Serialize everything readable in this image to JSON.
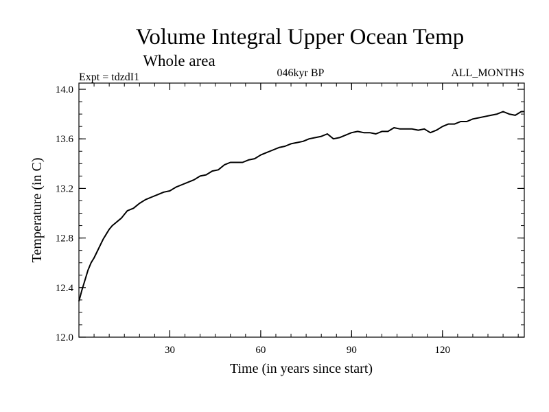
{
  "chart_data": {
    "type": "line",
    "title": "Volume Integral Upper Ocean Temp",
    "subtitle": "Whole area",
    "annotations": {
      "left": "Expt = tdzdI1",
      "center": "046kyr BP",
      "right": "ALL_MONTHS"
    },
    "xlabel": "Time (in years since start)",
    "ylabel": "Temperature (in C)",
    "xlim": [
      0,
      147
    ],
    "ylim": [
      12.0,
      14.05
    ],
    "x_ticks": [
      30,
      60,
      90,
      120
    ],
    "x_tick_labels": [
      "30",
      "60",
      "90",
      "120"
    ],
    "y_ticks": [
      12.0,
      12.4,
      12.8,
      13.2,
      13.6,
      14.0
    ],
    "y_tick_labels": [
      "12.0",
      "12.4",
      "12.8",
      "13.2",
      "13.6",
      "14.0"
    ],
    "x_minor_step": 5,
    "y_minor_step": 0.1,
    "series": [
      {
        "name": "Temperature",
        "color": "#000000",
        "x": [
          0,
          1,
          2,
          3,
          4,
          5,
          6,
          7,
          8,
          9,
          10,
          11,
          12,
          13,
          14,
          15,
          16,
          17,
          18,
          19,
          20,
          22,
          24,
          26,
          28,
          30,
          32,
          34,
          36,
          38,
          40,
          42,
          44,
          46,
          48,
          50,
          52,
          54,
          56,
          58,
          60,
          62,
          64,
          66,
          68,
          70,
          72,
          74,
          76,
          78,
          80,
          82,
          84,
          86,
          88,
          90,
          92,
          94,
          96,
          98,
          100,
          102,
          104,
          106,
          108,
          110,
          112,
          114,
          116,
          118,
          120,
          122,
          124,
          126,
          128,
          130,
          132,
          134,
          136,
          138,
          140,
          142,
          144,
          146,
          147
        ],
        "values": [
          12.29,
          12.38,
          12.46,
          12.54,
          12.6,
          12.64,
          12.69,
          12.74,
          12.79,
          12.83,
          12.87,
          12.9,
          12.92,
          12.94,
          12.96,
          12.99,
          13.02,
          13.03,
          13.04,
          13.06,
          13.08,
          13.11,
          13.13,
          13.15,
          13.17,
          13.18,
          13.21,
          13.23,
          13.25,
          13.27,
          13.3,
          13.31,
          13.34,
          13.35,
          13.39,
          13.41,
          13.41,
          13.41,
          13.43,
          13.44,
          13.47,
          13.49,
          13.51,
          13.53,
          13.54,
          13.56,
          13.57,
          13.58,
          13.6,
          13.61,
          13.62,
          13.64,
          13.6,
          13.61,
          13.63,
          13.65,
          13.66,
          13.65,
          13.65,
          13.64,
          13.66,
          13.66,
          13.69,
          13.68,
          13.68,
          13.68,
          13.67,
          13.68,
          13.65,
          13.67,
          13.7,
          13.72,
          13.72,
          13.74,
          13.74,
          13.76,
          13.77,
          13.78,
          13.79,
          13.8,
          13.82,
          13.8,
          13.79,
          13.82,
          13.82
        ]
      }
    ]
  }
}
